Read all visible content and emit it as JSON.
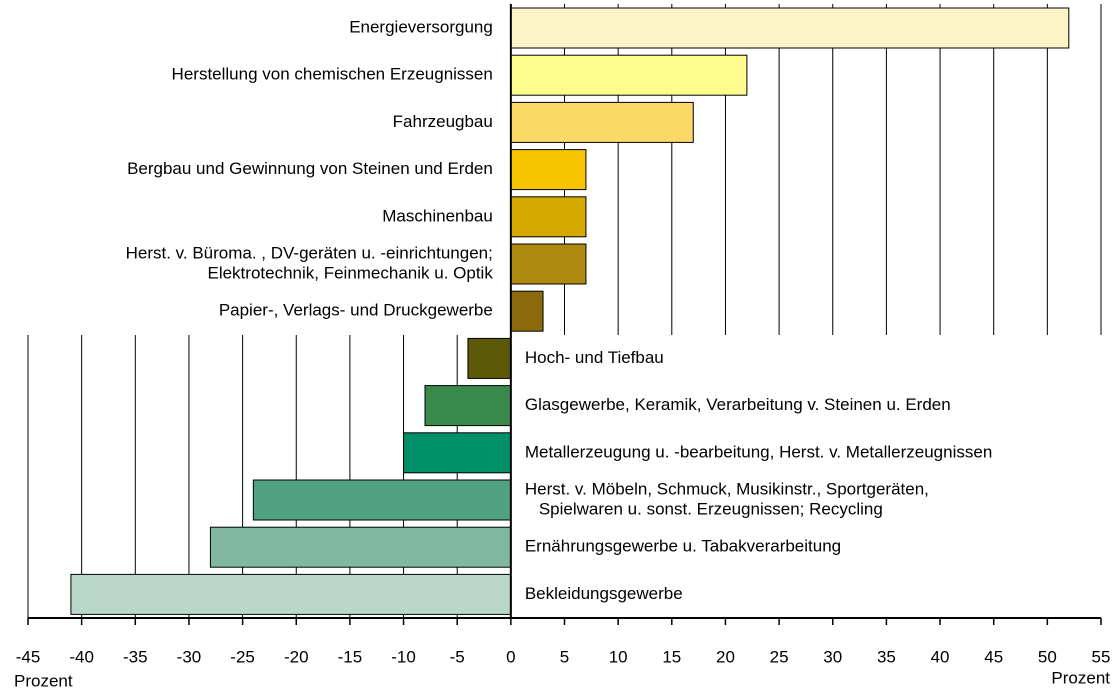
{
  "chart_data": {
    "type": "barh",
    "categories": [
      [
        "Energieversorgung"
      ],
      [
        "Herstellung von chemischen Erzeugnissen"
      ],
      [
        "Fahrzeugbau"
      ],
      [
        "Bergbau und Gewinnung von Steinen und Erden"
      ],
      [
        "Maschinenbau"
      ],
      [
        "Herst. v. Büroma. , DV-geräten u. -einrichtungen;",
        "Elektrotechnik, Feinmechanik u. Optik"
      ],
      [
        "Papier-, Verlags- und Druckgewerbe"
      ],
      [
        "Hoch- und Tiefbau"
      ],
      [
        "Glasgewerbe, Keramik, Verarbeitung v. Steinen u. Erden"
      ],
      [
        "Metallerzeugung u. -bearbeitung, Herst. v. Metallerzeugnissen"
      ],
      [
        "Herst. v. Möbeln, Schmuck, Musikinstr., Sportgeräten,",
        "Spielwaren u. sonst. Erzeugnissen; Recycling"
      ],
      [
        "Ernährungsgewerbe u. Tabakverarbeitung"
      ],
      [
        "Bekleidungsgewerbe"
      ]
    ],
    "values": [
      52,
      22,
      17,
      7,
      7,
      7,
      3,
      -4,
      -8,
      -10,
      -24,
      -28,
      -41
    ],
    "colors": [
      "#fdf4c6",
      "#fdfb8c",
      "#fcd967",
      "#f7c400",
      "#d4aa00",
      "#b08a10",
      "#8c6a0c",
      "#5c5a08",
      "#3a8a4e",
      "#009068",
      "#50a282",
      "#80b8a2",
      "#b9d8c9"
    ],
    "xlabel": "Prozent",
    "xlim": [
      -45,
      55
    ],
    "xticks": [
      -45,
      -40,
      -35,
      -30,
      -25,
      -20,
      -15,
      -10,
      -5,
      0,
      5,
      10,
      15,
      20,
      25,
      30,
      35,
      40,
      45,
      50,
      55
    ],
    "grid": true
  }
}
